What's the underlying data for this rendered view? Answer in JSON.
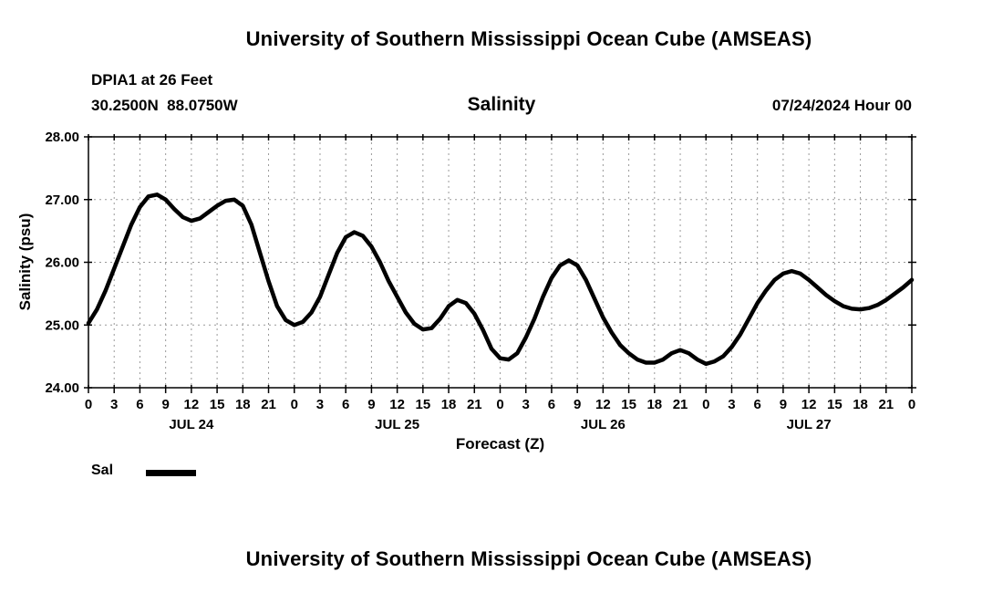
{
  "page": {
    "top_title": "University of Southern Mississippi Ocean Cube (AMSEAS)",
    "bottom_title": "University of Southern Mississippi Ocean Cube (AMSEAS)"
  },
  "header": {
    "station": "DPIA1 at 26 Feet",
    "coordinates": "30.2500N  88.0750W",
    "datetime": "07/24/2024 Hour 00"
  },
  "chart_data": {
    "type": "line",
    "title": "Salinity",
    "xlabel": "Forecast (Z)",
    "ylabel": "Salinity (psu)",
    "ylim": [
      24,
      28
    ],
    "xlim_hours": [
      0,
      96
    ],
    "x_tick_step_hours": 3,
    "x_tick_labels": [
      "0",
      "3",
      "6",
      "9",
      "12",
      "15",
      "18",
      "21",
      "0",
      "3",
      "6",
      "9",
      "12",
      "15",
      "18",
      "21",
      "0",
      "3",
      "6",
      "9",
      "12",
      "15",
      "18",
      "21",
      "0",
      "3",
      "6",
      "9",
      "12",
      "15",
      "18",
      "21",
      "0"
    ],
    "y_ticks": [
      "24.00",
      "25.00",
      "26.00",
      "27.00",
      "28.00"
    ],
    "day_labels": [
      {
        "label": "JUL 24",
        "hour": 12
      },
      {
        "label": "JUL 25",
        "hour": 36
      },
      {
        "label": "JUL 26",
        "hour": 60
      },
      {
        "label": "JUL 27",
        "hour": 84
      }
    ],
    "grid": "dashed",
    "grid_color": "#999999",
    "line_color": "#000000",
    "line_width": 4.5,
    "legend_position": "bottom-left",
    "series": [
      {
        "name": "Sal",
        "x_start_hour": 0,
        "x_step_hours": 1,
        "values": [
          25.03,
          25.25,
          25.55,
          25.9,
          26.25,
          26.6,
          26.88,
          27.05,
          27.08,
          27.0,
          26.85,
          26.72,
          26.66,
          26.7,
          26.8,
          26.9,
          26.98,
          27.0,
          26.9,
          26.6,
          26.15,
          25.7,
          25.3,
          25.08,
          25.0,
          25.05,
          25.2,
          25.45,
          25.8,
          26.15,
          26.4,
          26.48,
          26.42,
          26.25,
          26.0,
          25.7,
          25.45,
          25.2,
          25.02,
          24.93,
          24.95,
          25.1,
          25.3,
          25.4,
          25.35,
          25.18,
          24.92,
          24.62,
          24.47,
          24.45,
          24.55,
          24.8,
          25.1,
          25.45,
          25.75,
          25.95,
          26.03,
          25.95,
          25.72,
          25.42,
          25.12,
          24.88,
          24.68,
          24.55,
          24.45,
          24.4,
          24.4,
          24.45,
          24.55,
          24.6,
          24.55,
          24.45,
          24.38,
          24.42,
          24.5,
          24.65,
          24.85,
          25.1,
          25.35,
          25.55,
          25.72,
          25.82,
          25.86,
          25.82,
          25.72,
          25.6,
          25.48,
          25.38,
          25.3,
          25.26,
          25.25,
          25.27,
          25.32,
          25.4,
          25.5,
          25.6,
          25.72
        ]
      }
    ]
  }
}
